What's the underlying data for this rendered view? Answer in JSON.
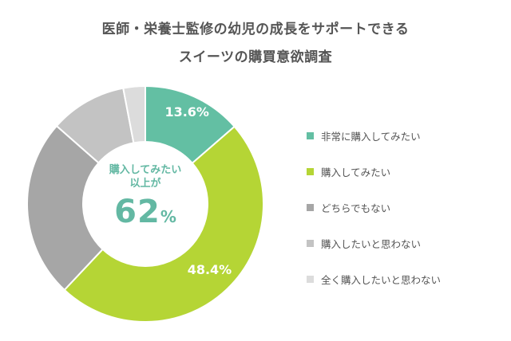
{
  "title": {
    "line1": "医師・栄養士監修の幼児の成長をサポートできる",
    "line2": "スイーツの購買意欲調査"
  },
  "center_label": {
    "line1": "購入してみたい",
    "line2": "以上が",
    "value": "62",
    "unit": "%"
  },
  "chart_data": {
    "type": "pie",
    "donut": true,
    "start_angle_deg": 0,
    "direction": "clockwise",
    "title": "医師・栄養士監修の幼児の成長をサポートできる スイーツの購買意欲調査",
    "slices": [
      {
        "name": "非常に購入してみたい",
        "value": 13.6,
        "label": "13.6%",
        "color": "#63bfa3"
      },
      {
        "name": "購入してみたい",
        "value": 48.4,
        "label": "48.4%",
        "color": "#b5d535"
      },
      {
        "name": "どちらでもない",
        "value": 24.5,
        "label": "",
        "color": "#a6a6a6"
      },
      {
        "name": "購入したいと思わない",
        "value": 10.5,
        "label": "",
        "color": "#c3c3c3"
      },
      {
        "name": "全く購入したいと思わない",
        "value": 3.0,
        "label": "",
        "color": "#dcdcdc"
      }
    ],
    "legend_position": "right"
  }
}
